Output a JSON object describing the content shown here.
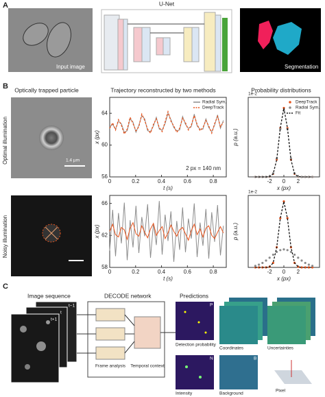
{
  "figure": {
    "panel_a": {
      "label": "A",
      "input": "Input image",
      "net": "U-Net",
      "output": "Segmentation"
    },
    "panel_b": {
      "label": "B",
      "col1": "Optically trapped particle",
      "col2": "Trajectory reconstructed by two methods",
      "col3": "Probability distributions",
      "row1": "Optimal illumination",
      "row2": "Noisy illumination",
      "scale": "1.4 µm"
    },
    "panel_c": {
      "label": "C",
      "seq": "Image sequence",
      "net": "DECODE network",
      "pred": "Predictions",
      "frame": "Frame analysis",
      "temporal": "Temporal context",
      "det": "Detection probability",
      "coord": "Coordinates",
      "unc": "Uncertainties",
      "int": "Intensity",
      "bg": "Background",
      "pixel": "Pixel",
      "t0": "t−1",
      "t1": "t",
      "t2": "t+1",
      "p": "P",
      "n": "N",
      "b": "B"
    }
  },
  "chart_data": [
    {
      "type": "line",
      "xlabel": "t (s)",
      "ylabel": "x (px)",
      "annotation": "2 px = 140 nm",
      "xlim": [
        0,
        0.9
      ],
      "xticks": [
        0,
        0.2,
        0.4,
        0.6,
        0.8
      ],
      "ylim": [
        56,
        66
      ],
      "yticks": [
        56,
        60,
        64
      ],
      "legend": "upper right",
      "x": [
        0,
        0.0225,
        0.045,
        0.0675,
        0.09,
        0.1125,
        0.135,
        0.1575,
        0.18,
        0.2025,
        0.225,
        0.2475,
        0.27,
        0.2925,
        0.315,
        0.3375,
        0.36,
        0.3825,
        0.405,
        0.4275,
        0.45,
        0.4725,
        0.495,
        0.5175,
        0.54,
        0.5625,
        0.585,
        0.6075,
        0.63,
        0.6525,
        0.675,
        0.6975,
        0.72,
        0.7425,
        0.765,
        0.7875,
        0.81,
        0.8325,
        0.855,
        0.8775
      ],
      "series": [
        {
          "name": "Radial Sym.",
          "color": "#8c8c8c",
          "dash": false,
          "values": [
            62.3,
            62.6,
            62.0,
            63.0,
            62.7,
            61.6,
            61.8,
            63.3,
            62.9,
            61.6,
            62.5,
            63.7,
            63.3,
            61.8,
            61.7,
            62.4,
            63.5,
            62.0,
            61.9,
            62.7,
            64.0,
            63.2,
            62.2,
            61.8,
            61.9,
            63.6,
            62.6,
            62.1,
            62.3,
            63.9,
            62.4,
            62.0,
            62.0,
            63.3,
            62.2,
            61.7,
            62.5,
            63.8,
            62.1,
            63.1
          ]
        },
        {
          "name": "DeepTrack",
          "color": "#e8541c",
          "dash": true,
          "values": [
            62.1,
            62.8,
            61.9,
            63.2,
            62.5,
            61.4,
            62.0,
            63.5,
            62.7,
            61.8,
            62.3,
            63.9,
            63.1,
            62.0,
            61.5,
            62.6,
            63.3,
            62.2,
            61.7,
            62.9,
            64.2,
            63.0,
            62.4,
            61.6,
            62.1,
            63.4,
            62.8,
            61.9,
            62.5,
            63.7,
            62.6,
            61.8,
            62.2,
            63.1,
            62.4,
            61.5,
            62.7,
            63.6,
            62.3,
            62.9
          ]
        }
      ]
    },
    {
      "type": "line",
      "xlabel": "x (px)",
      "ylabel": "p (a.u.)",
      "multiplier": "1e-2",
      "xlim": [
        -5,
        5
      ],
      "xticks": [
        -2,
        0,
        2
      ],
      "ylim": [
        0,
        6
      ],
      "legend": "upper right",
      "x": [
        -4,
        -3.5,
        -3,
        -2.5,
        -2,
        -1.5,
        -1,
        -0.5,
        0,
        0.5,
        1,
        1.5,
        2,
        2.5,
        3,
        3.5,
        4
      ],
      "series": [
        {
          "name": "DeepTrack",
          "color": "#e8541c",
          "marker": true,
          "values": [
            0,
            0,
            0,
            0,
            0.02,
            0.23,
            1.3,
            3.68,
            5.2,
            3.68,
            1.3,
            0.23,
            0.02,
            0,
            0,
            0,
            0
          ]
        },
        {
          "name": "Radial Sym.",
          "color": "#8c8c8c",
          "marker": true,
          "values": [
            0,
            0,
            0,
            0,
            0.03,
            0.27,
            1.4,
            3.6,
            5.0,
            3.6,
            1.4,
            0.27,
            0.03,
            0,
            0,
            0,
            0
          ]
        },
        {
          "name": "Fit",
          "color": "#111111",
          "dash": true,
          "values": [
            0,
            0,
            0,
            0,
            0.02,
            0.23,
            1.3,
            3.7,
            5.2,
            3.7,
            1.3,
            0.23,
            0.02,
            0,
            0,
            0,
            0
          ]
        }
      ]
    },
    {
      "type": "line",
      "xlabel": "t (s)",
      "ylabel": "x (px)",
      "xlim": [
        0,
        0.9
      ],
      "xticks": [
        0,
        0.2,
        0.4,
        0.6,
        0.8
      ],
      "ylim": [
        58,
        67
      ],
      "yticks": [
        58,
        62,
        66
      ],
      "x": [
        0,
        0.0225,
        0.045,
        0.0675,
        0.09,
        0.1125,
        0.135,
        0.1575,
        0.18,
        0.2025,
        0.225,
        0.2475,
        0.27,
        0.2925,
        0.315,
        0.3375,
        0.36,
        0.3825,
        0.405,
        0.4275,
        0.45,
        0.4725,
        0.495,
        0.5175,
        0.54,
        0.5625,
        0.585,
        0.6075,
        0.63,
        0.6525,
        0.675,
        0.6975,
        0.72,
        0.7425,
        0.765,
        0.7875,
        0.81,
        0.8325,
        0.855,
        0.8775
      ],
      "series": [
        {
          "name": "Radial Sym.",
          "color": "#8c8c8c",
          "values": [
            60.1,
            65.2,
            59.4,
            64.8,
            61.0,
            66.1,
            58.9,
            63.9,
            60.5,
            65.7,
            59.8,
            64.3,
            61.9,
            65.9,
            59.2,
            63.5,
            60.8,
            66.3,
            59.6,
            64.6,
            61.3,
            65.0,
            58.7,
            63.8,
            60.2,
            65.5,
            59.9,
            64.1,
            61.6,
            66.0,
            59.3,
            63.6,
            60.7,
            65.3,
            59.1,
            64.9,
            61.2,
            65.8,
            59.5,
            63.2
          ]
        },
        {
          "name": "DeepTrack",
          "color": "#e8541c",
          "values": [
            62.5,
            63.4,
            62.1,
            61.8,
            63.0,
            62.7,
            61.5,
            62.9,
            63.6,
            62.2,
            61.9,
            63.2,
            62.4,
            61.7,
            62.8,
            63.5,
            62.0,
            62.6,
            63.1,
            61.6,
            62.3,
            63.3,
            62.5,
            61.9,
            62.7,
            63.0,
            62.2,
            61.4,
            62.6,
            63.4,
            62.1,
            62.8,
            61.8,
            62.9,
            63.2,
            62.0,
            61.6,
            62.4,
            63.1,
            62.3
          ]
        }
      ]
    },
    {
      "type": "line",
      "xlabel": "x (px)",
      "ylabel": "p (a.u.)",
      "multiplier": "1e-2",
      "xlim": [
        -5,
        5
      ],
      "xticks": [
        -2,
        0,
        2
      ],
      "ylim": [
        0,
        6
      ],
      "x": [
        -4,
        -3.5,
        -3,
        -2.5,
        -2,
        -1.5,
        -1,
        -0.5,
        0,
        0.5,
        1,
        1.5,
        2,
        2.5,
        3,
        3.5,
        4
      ],
      "series": [
        {
          "name": "DeepTrack",
          "color": "#e8541c",
          "marker": true,
          "values": [
            0,
            0,
            0,
            0,
            0.05,
            0.38,
            1.68,
            4.1,
            5.5,
            4.1,
            1.68,
            0.38,
            0.05,
            0,
            0,
            0,
            0
          ]
        },
        {
          "name": "Radial Sym.",
          "color": "#8c8c8c",
          "marker": true,
          "values": [
            0.13,
            0.23,
            0.37,
            0.57,
            0.81,
            1.06,
            1.29,
            1.44,
            1.5,
            1.44,
            1.29,
            1.06,
            0.81,
            0.57,
            0.37,
            0.23,
            0.13
          ]
        },
        {
          "name": "Fit",
          "color": "#111111",
          "dash": true,
          "values": [
            0,
            0,
            0,
            0,
            0.05,
            0.38,
            1.68,
            4.1,
            5.5,
            4.1,
            1.68,
            0.38,
            0.05,
            0,
            0,
            0,
            0
          ]
        }
      ]
    }
  ]
}
